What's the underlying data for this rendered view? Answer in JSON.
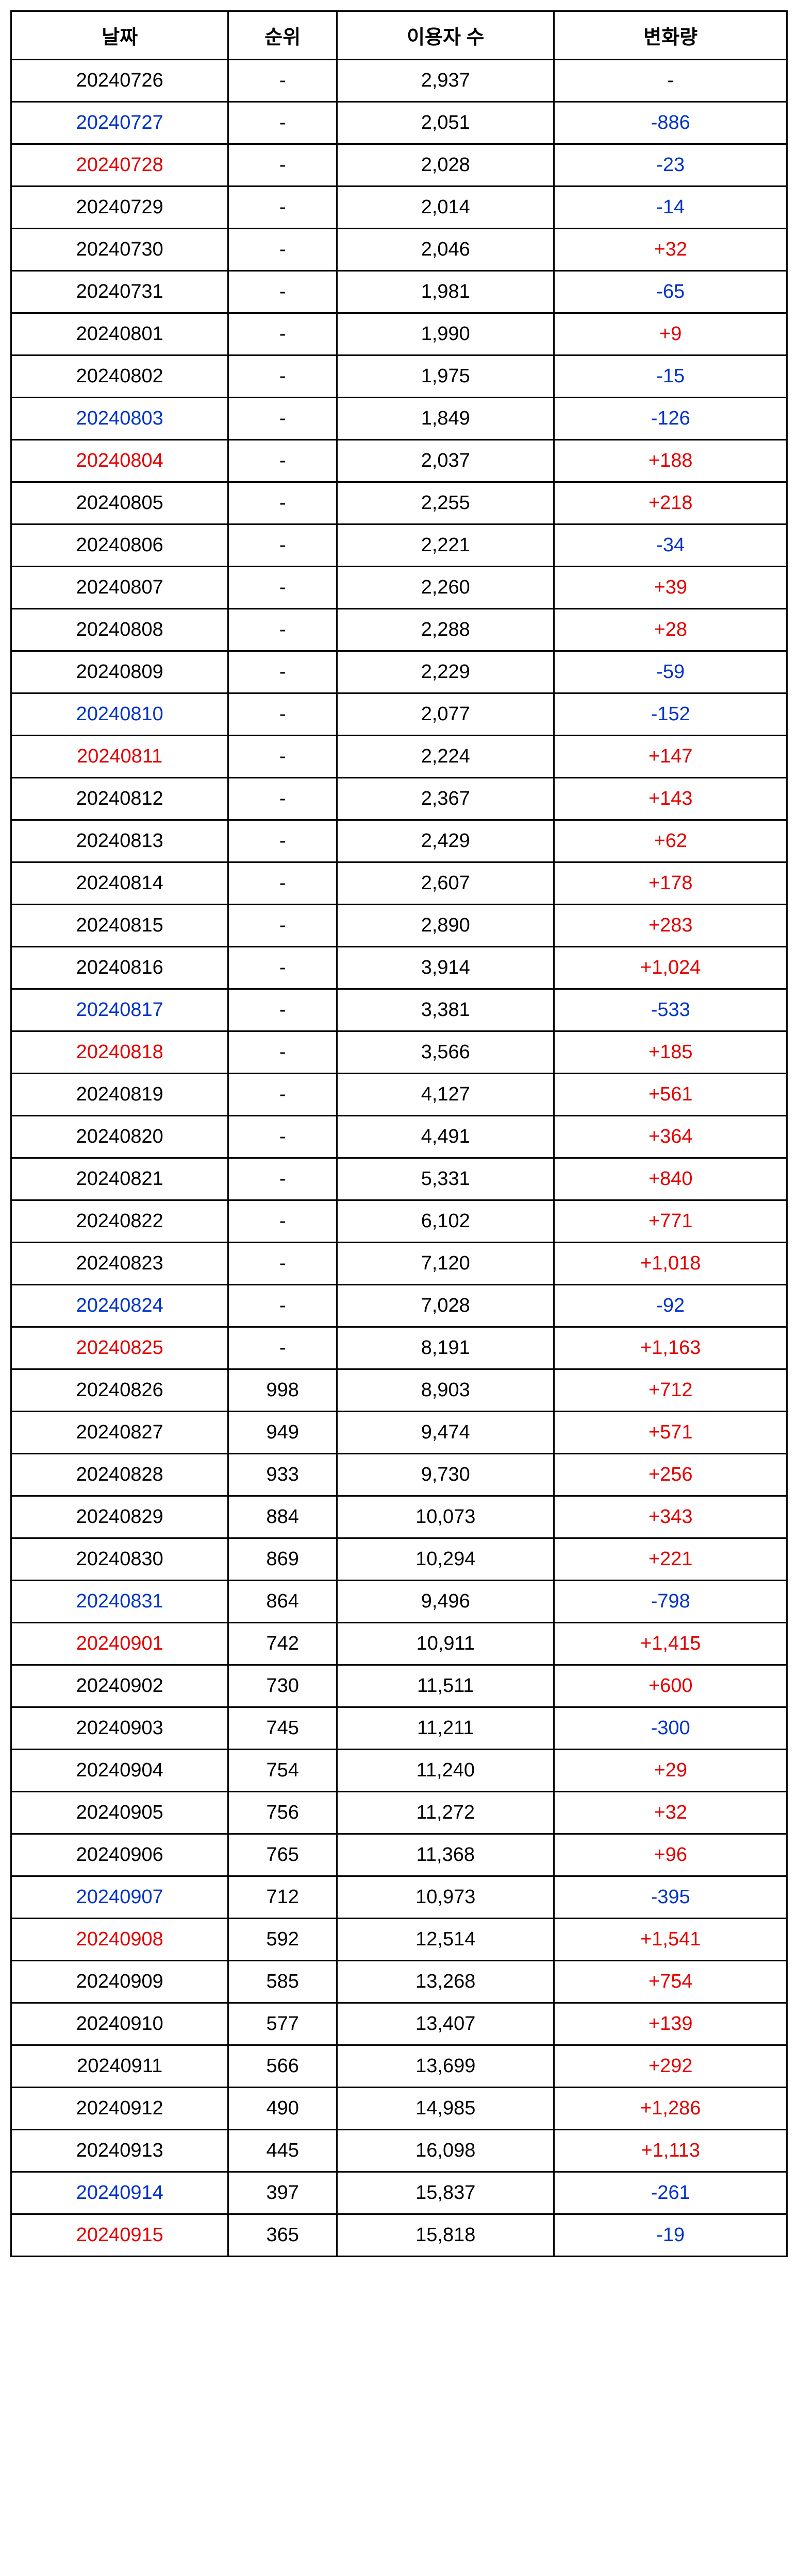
{
  "table": {
    "columns": [
      "날짜",
      "순위",
      "이용자 수",
      "변화량"
    ],
    "header_fontsize": 38,
    "cell_fontsize": 38,
    "border_color": "#000000",
    "colors": {
      "black": "#000000",
      "blue": "#0033cc",
      "red": "#e60000"
    },
    "col_widths_pct": [
      28,
      14,
      28,
      30
    ],
    "rows": [
      {
        "date": "20240726",
        "date_color": "black",
        "rank": "-",
        "users": "2,937",
        "delta": "-",
        "delta_color": "black"
      },
      {
        "date": "20240727",
        "date_color": "blue",
        "rank": "-",
        "users": "2,051",
        "delta": "-886",
        "delta_color": "blue"
      },
      {
        "date": "20240728",
        "date_color": "red",
        "rank": "-",
        "users": "2,028",
        "delta": "-23",
        "delta_color": "blue"
      },
      {
        "date": "20240729",
        "date_color": "black",
        "rank": "-",
        "users": "2,014",
        "delta": "-14",
        "delta_color": "blue"
      },
      {
        "date": "20240730",
        "date_color": "black",
        "rank": "-",
        "users": "2,046",
        "delta": "+32",
        "delta_color": "red"
      },
      {
        "date": "20240731",
        "date_color": "black",
        "rank": "-",
        "users": "1,981",
        "delta": "-65",
        "delta_color": "blue"
      },
      {
        "date": "20240801",
        "date_color": "black",
        "rank": "-",
        "users": "1,990",
        "delta": "+9",
        "delta_color": "red"
      },
      {
        "date": "20240802",
        "date_color": "black",
        "rank": "-",
        "users": "1,975",
        "delta": "-15",
        "delta_color": "blue"
      },
      {
        "date": "20240803",
        "date_color": "blue",
        "rank": "-",
        "users": "1,849",
        "delta": "-126",
        "delta_color": "blue"
      },
      {
        "date": "20240804",
        "date_color": "red",
        "rank": "-",
        "users": "2,037",
        "delta": "+188",
        "delta_color": "red"
      },
      {
        "date": "20240805",
        "date_color": "black",
        "rank": "-",
        "users": "2,255",
        "delta": "+218",
        "delta_color": "red"
      },
      {
        "date": "20240806",
        "date_color": "black",
        "rank": "-",
        "users": "2,221",
        "delta": "-34",
        "delta_color": "blue"
      },
      {
        "date": "20240807",
        "date_color": "black",
        "rank": "-",
        "users": "2,260",
        "delta": "+39",
        "delta_color": "red"
      },
      {
        "date": "20240808",
        "date_color": "black",
        "rank": "-",
        "users": "2,288",
        "delta": "+28",
        "delta_color": "red"
      },
      {
        "date": "20240809",
        "date_color": "black",
        "rank": "-",
        "users": "2,229",
        "delta": "-59",
        "delta_color": "blue"
      },
      {
        "date": "20240810",
        "date_color": "blue",
        "rank": "-",
        "users": "2,077",
        "delta": "-152",
        "delta_color": "blue"
      },
      {
        "date": "20240811",
        "date_color": "red",
        "rank": "-",
        "users": "2,224",
        "delta": "+147",
        "delta_color": "red"
      },
      {
        "date": "20240812",
        "date_color": "black",
        "rank": "-",
        "users": "2,367",
        "delta": "+143",
        "delta_color": "red"
      },
      {
        "date": "20240813",
        "date_color": "black",
        "rank": "-",
        "users": "2,429",
        "delta": "+62",
        "delta_color": "red"
      },
      {
        "date": "20240814",
        "date_color": "black",
        "rank": "-",
        "users": "2,607",
        "delta": "+178",
        "delta_color": "red"
      },
      {
        "date": "20240815",
        "date_color": "black",
        "rank": "-",
        "users": "2,890",
        "delta": "+283",
        "delta_color": "red"
      },
      {
        "date": "20240816",
        "date_color": "black",
        "rank": "-",
        "users": "3,914",
        "delta": "+1,024",
        "delta_color": "red"
      },
      {
        "date": "20240817",
        "date_color": "blue",
        "rank": "-",
        "users": "3,381",
        "delta": "-533",
        "delta_color": "blue"
      },
      {
        "date": "20240818",
        "date_color": "red",
        "rank": "-",
        "users": "3,566",
        "delta": "+185",
        "delta_color": "red"
      },
      {
        "date": "20240819",
        "date_color": "black",
        "rank": "-",
        "users": "4,127",
        "delta": "+561",
        "delta_color": "red"
      },
      {
        "date": "20240820",
        "date_color": "black",
        "rank": "-",
        "users": "4,491",
        "delta": "+364",
        "delta_color": "red"
      },
      {
        "date": "20240821",
        "date_color": "black",
        "rank": "-",
        "users": "5,331",
        "delta": "+840",
        "delta_color": "red"
      },
      {
        "date": "20240822",
        "date_color": "black",
        "rank": "-",
        "users": "6,102",
        "delta": "+771",
        "delta_color": "red"
      },
      {
        "date": "20240823",
        "date_color": "black",
        "rank": "-",
        "users": "7,120",
        "delta": "+1,018",
        "delta_color": "red"
      },
      {
        "date": "20240824",
        "date_color": "blue",
        "rank": "-",
        "users": "7,028",
        "delta": "-92",
        "delta_color": "blue"
      },
      {
        "date": "20240825",
        "date_color": "red",
        "rank": "-",
        "users": "8,191",
        "delta": "+1,163",
        "delta_color": "red"
      },
      {
        "date": "20240826",
        "date_color": "black",
        "rank": "998",
        "users": "8,903",
        "delta": "+712",
        "delta_color": "red"
      },
      {
        "date": "20240827",
        "date_color": "black",
        "rank": "949",
        "users": "9,474",
        "delta": "+571",
        "delta_color": "red"
      },
      {
        "date": "20240828",
        "date_color": "black",
        "rank": "933",
        "users": "9,730",
        "delta": "+256",
        "delta_color": "red"
      },
      {
        "date": "20240829",
        "date_color": "black",
        "rank": "884",
        "users": "10,073",
        "delta": "+343",
        "delta_color": "red"
      },
      {
        "date": "20240830",
        "date_color": "black",
        "rank": "869",
        "users": "10,294",
        "delta": "+221",
        "delta_color": "red"
      },
      {
        "date": "20240831",
        "date_color": "blue",
        "rank": "864",
        "users": "9,496",
        "delta": "-798",
        "delta_color": "blue"
      },
      {
        "date": "20240901",
        "date_color": "red",
        "rank": "742",
        "users": "10,911",
        "delta": "+1,415",
        "delta_color": "red"
      },
      {
        "date": "20240902",
        "date_color": "black",
        "rank": "730",
        "users": "11,511",
        "delta": "+600",
        "delta_color": "red"
      },
      {
        "date": "20240903",
        "date_color": "black",
        "rank": "745",
        "users": "11,211",
        "delta": "-300",
        "delta_color": "blue"
      },
      {
        "date": "20240904",
        "date_color": "black",
        "rank": "754",
        "users": "11,240",
        "delta": "+29",
        "delta_color": "red"
      },
      {
        "date": "20240905",
        "date_color": "black",
        "rank": "756",
        "users": "11,272",
        "delta": "+32",
        "delta_color": "red"
      },
      {
        "date": "20240906",
        "date_color": "black",
        "rank": "765",
        "users": "11,368",
        "delta": "+96",
        "delta_color": "red"
      },
      {
        "date": "20240907",
        "date_color": "blue",
        "rank": "712",
        "users": "10,973",
        "delta": "-395",
        "delta_color": "blue"
      },
      {
        "date": "20240908",
        "date_color": "red",
        "rank": "592",
        "users": "12,514",
        "delta": "+1,541",
        "delta_color": "red"
      },
      {
        "date": "20240909",
        "date_color": "black",
        "rank": "585",
        "users": "13,268",
        "delta": "+754",
        "delta_color": "red"
      },
      {
        "date": "20240910",
        "date_color": "black",
        "rank": "577",
        "users": "13,407",
        "delta": "+139",
        "delta_color": "red"
      },
      {
        "date": "20240911",
        "date_color": "black",
        "rank": "566",
        "users": "13,699",
        "delta": "+292",
        "delta_color": "red"
      },
      {
        "date": "20240912",
        "date_color": "black",
        "rank": "490",
        "users": "14,985",
        "delta": "+1,286",
        "delta_color": "red"
      },
      {
        "date": "20240913",
        "date_color": "black",
        "rank": "445",
        "users": "16,098",
        "delta": "+1,113",
        "delta_color": "red"
      },
      {
        "date": "20240914",
        "date_color": "blue",
        "rank": "397",
        "users": "15,837",
        "delta": "-261",
        "delta_color": "blue"
      },
      {
        "date": "20240915",
        "date_color": "red",
        "rank": "365",
        "users": "15,818",
        "delta": "-19",
        "delta_color": "blue"
      }
    ]
  }
}
